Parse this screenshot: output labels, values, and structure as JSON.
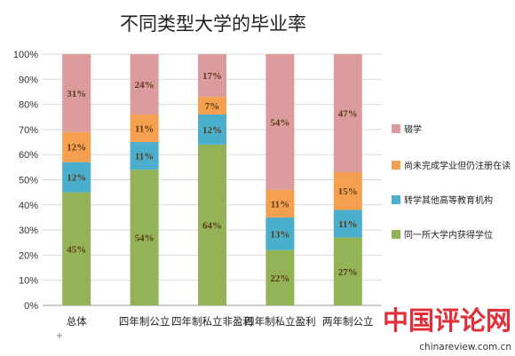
{
  "chart_data": {
    "type": "bar",
    "stacked": true,
    "percent": true,
    "title": "不同类型大学的毕业率",
    "categories": [
      "总体",
      "四年制公立",
      "四年制私立非盈利",
      "四年制私立盈利",
      "两年制公立"
    ],
    "series": [
      {
        "name": "同一所大学内获得学位",
        "color": "#93b356",
        "values": [
          45,
          54,
          64,
          22,
          27
        ]
      },
      {
        "name": "转学其他高等教育机构",
        "color": "#4aaecd",
        "values": [
          12,
          11,
          12,
          13,
          11
        ]
      },
      {
        "name": "尚未完成学业但仍注册在读",
        "color": "#f4a04e",
        "values": [
          12,
          11,
          7,
          11,
          15
        ]
      },
      {
        "name": "辍学",
        "color": "#dc9b9d",
        "values": [
          31,
          24,
          17,
          54,
          47
        ]
      }
    ],
    "value_suffix": "%",
    "ylim": [
      0,
      100
    ],
    "yticks": [
      "0%",
      "10%",
      "20%",
      "30%",
      "40%",
      "50%",
      "60%",
      "70%",
      "80%",
      "90%",
      "100%"
    ],
    "legend_position": "right",
    "legend_order": [
      "辍学",
      "尚未完成学业但仍注册在读",
      "转学其他高等教育机构",
      "同一所大学内获得学位"
    ]
  },
  "watermark": {
    "brand": "中国评论网",
    "url": "chinareview.com.cn",
    "color": "#e0303a"
  }
}
